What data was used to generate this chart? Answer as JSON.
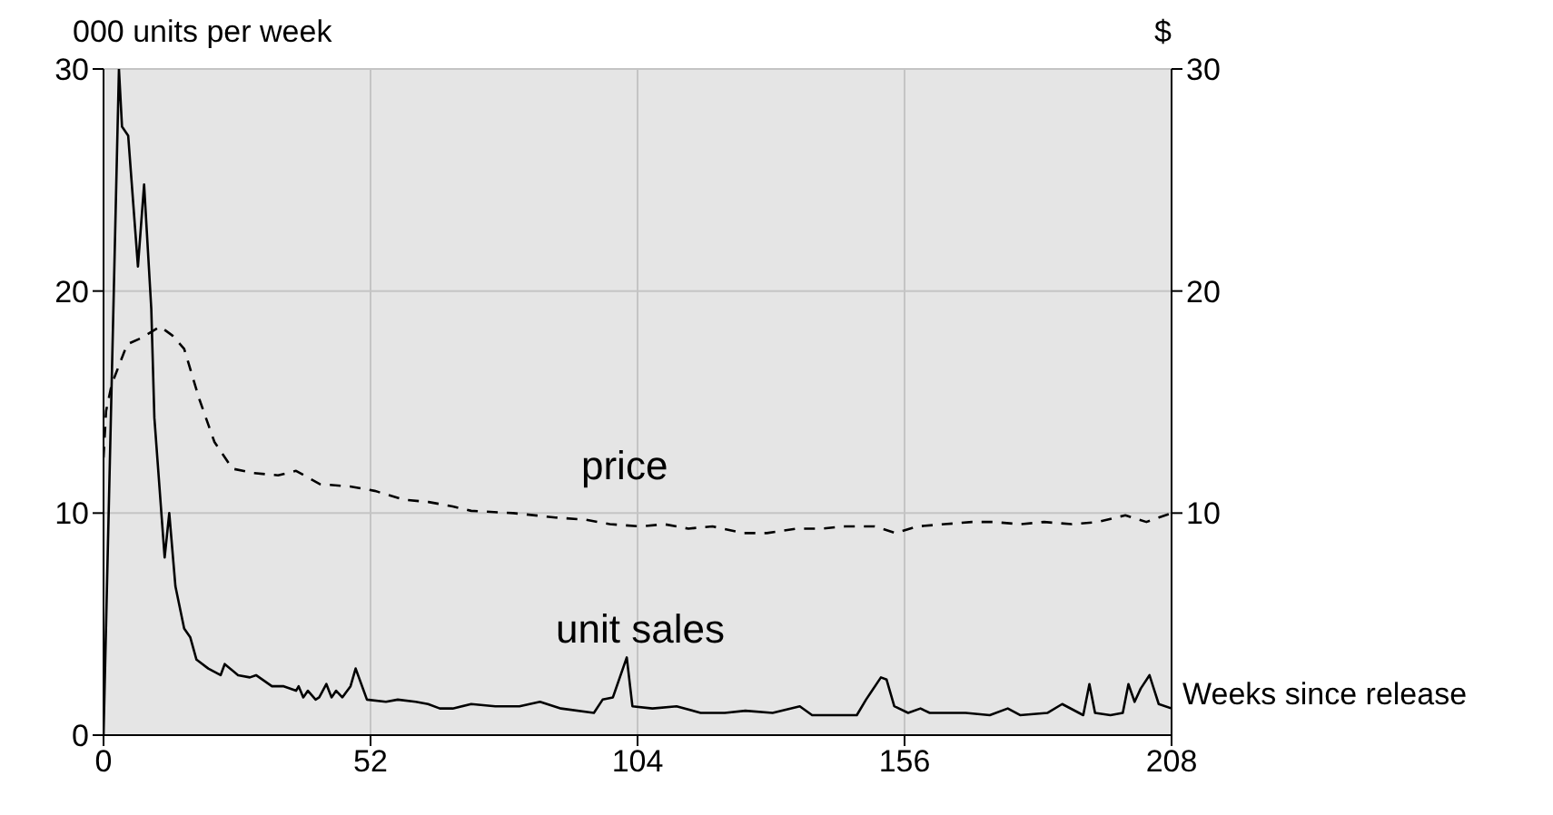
{
  "chart_data": {
    "type": "line",
    "ylabel": "000 units per week",
    "y2label": "$",
    "xlabel": "Weeks since release",
    "xlim": [
      0,
      208
    ],
    "xticks": [
      0,
      52,
      104,
      156,
      208
    ],
    "ylim": [
      0,
      30
    ],
    "yticks": [
      0,
      10,
      20,
      30
    ],
    "y2lim": [
      0,
      30
    ],
    "y2ticks": [
      10,
      20,
      30
    ],
    "grid": true,
    "legend": false,
    "marker": "none",
    "series": [
      {
        "color": "#000000",
        "line_style": "solid",
        "x": [
          0,
          3,
          3.6,
          4.8,
          6.7,
          7.9,
          9.3,
          9.9,
          11.9,
          12.8,
          14,
          15.7,
          16.9,
          18.1,
          20.4,
          22.8,
          23.6,
          26.2,
          28.5,
          29.7,
          32.8,
          35.1,
          37.5,
          38,
          38.9,
          39.8,
          41.3,
          42,
          43.4,
          44.4,
          45.3,
          46.5,
          48.1,
          49.1,
          51.3,
          55,
          57.3,
          60.8,
          63.2,
          65.5,
          68,
          71.6,
          76.3,
          81,
          85,
          89.1,
          95.5,
          97.2,
          99.2,
          101.9,
          103,
          106.9,
          111.6,
          116.3,
          121,
          125,
          130.3,
          135.6,
          138,
          141.9,
          146.7,
          148.5,
          151.4,
          152.5,
          154,
          156.7,
          159.1,
          160.9,
          167.9,
          172.6,
          176.1,
          178.5,
          183.8,
          186.7,
          190.8,
          192,
          193.1,
          196.1,
          198.5,
          199.6,
          200.8,
          202,
          203.7,
          205.5,
          208
        ],
        "values": [
          0,
          30,
          27.4,
          27.0,
          21.1,
          24.8,
          19.2,
          14.3,
          8.0,
          10.0,
          6.7,
          4.8,
          4.4,
          3.4,
          3.0,
          2.7,
          3.2,
          2.7,
          2.6,
          2.7,
          2.2,
          2.2,
          2.0,
          2.2,
          1.7,
          2.0,
          1.6,
          1.7,
          2.3,
          1.7,
          2.0,
          1.7,
          2.2,
          3.0,
          1.6,
          1.5,
          1.6,
          1.5,
          1.4,
          1.2,
          1.2,
          1.4,
          1.3,
          1.3,
          1.5,
          1.2,
          1.0,
          1.6,
          1.7,
          3.5,
          1.3,
          1.2,
          1.3,
          1.0,
          1.0,
          1.1,
          1.0,
          1.3,
          0.9,
          0.9,
          0.9,
          1.6,
          2.6,
          2.5,
          1.3,
          1.0,
          1.2,
          1.0,
          1.0,
          0.9,
          1.2,
          0.9,
          1.0,
          1.4,
          0.9,
          2.3,
          1.0,
          0.9,
          1.0,
          2.3,
          1.5,
          2.1,
          2.7,
          1.4,
          1.2
        ]
      },
      {
        "color": "#000000",
        "line_style": "dashed",
        "axis": "y2",
        "x": [
          0,
          0.5,
          1.6,
          4.6,
          7.5,
          11,
          13.4,
          15.7,
          18.7,
          21.6,
          25.1,
          29.3,
          34,
          37.5,
          42.2,
          48,
          52.8,
          58.6,
          63.3,
          68,
          71.6,
          79.8,
          88,
          93.9,
          98.6,
          104.5,
          109.2,
          113.9,
          118.6,
          124.5,
          129.2,
          135.1,
          139.8,
          144.4,
          150.2,
          154.3,
          158.5,
          163.8,
          169.1,
          173.2,
          178.5,
          183.2,
          188.5,
          193.7,
          199,
          203.1,
          205.5,
          208
        ],
        "values": [
          12.5,
          14.6,
          15.8,
          17.6,
          17.9,
          18.4,
          18.0,
          17.4,
          15.1,
          13.2,
          12.0,
          11.8,
          11.7,
          11.9,
          11.3,
          11.2,
          11.0,
          10.6,
          10.5,
          10.3,
          10.1,
          10.0,
          9.8,
          9.7,
          9.5,
          9.4,
          9.5,
          9.3,
          9.4,
          9.1,
          9.1,
          9.3,
          9.3,
          9.4,
          9.4,
          9.1,
          9.4,
          9.5,
          9.6,
          9.6,
          9.5,
          9.6,
          9.5,
          9.6,
          9.9,
          9.6,
          9.8,
          10.0
        ]
      }
    ],
    "annotations": [
      "price",
      "unit sales"
    ]
  }
}
